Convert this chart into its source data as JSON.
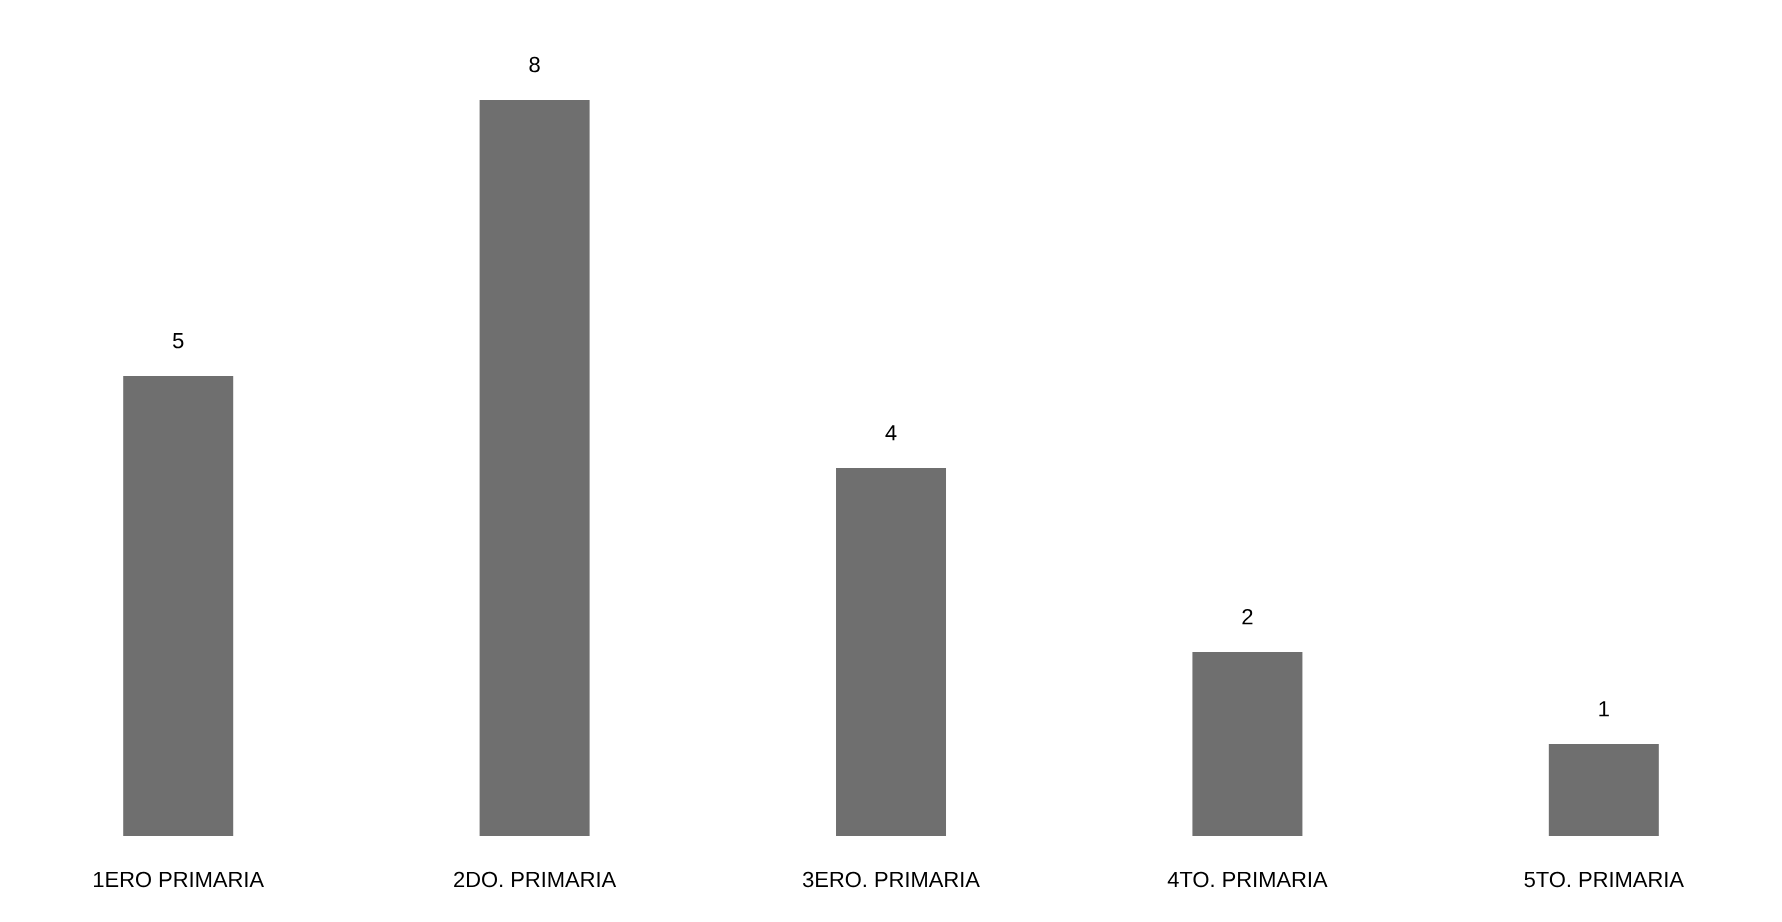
{
  "chart_data": {
    "type": "bar",
    "categories": [
      "1ERO PRIMARIA",
      "2DO. PRIMARIA",
      "3ERO. PRIMARIA",
      "4TO. PRIMARIA",
      "5TO. PRIMARIA"
    ],
    "values": [
      5,
      8,
      4,
      2,
      1
    ],
    "color": "#6f6f6f",
    "data_labels": true
  }
}
